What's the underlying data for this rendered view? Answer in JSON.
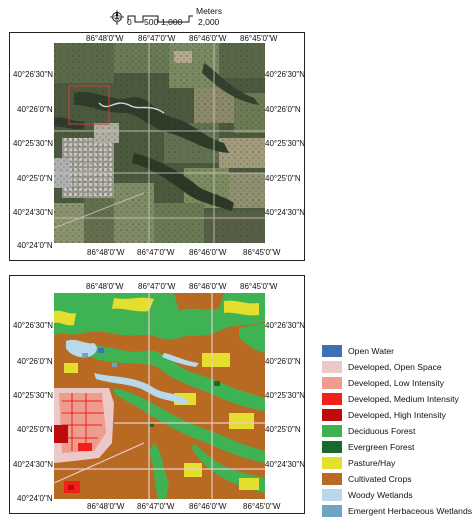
{
  "scale_bar": {
    "unit": "Meters",
    "ticks": [
      "0",
      "500",
      "1,000",
      "2,000"
    ]
  },
  "top_map": {
    "type": "aerial-imagery",
    "top_longitudes": [
      "86°48'0\"W",
      "86°47'0\"W",
      "86°46'0\"W",
      "86°45'0\"W"
    ],
    "bottom_longitudes": [
      "86°48'0\"W",
      "86°47'0\"W",
      "86°46'0\"W",
      "86°45'0\"W"
    ],
    "left_latitudes": [
      "40°26'30\"N",
      "40°26'0\"N",
      "40°25'30\"N",
      "40°25'0\"N",
      "40°24'30\"N",
      "40°24'0\"N"
    ],
    "right_latitudes": [
      "40°26'30\"N",
      "40°26'0\"N",
      "40°25'30\"N",
      "40°25'0\"N",
      "40°24'30\"N"
    ],
    "highlight_color": "#d83a3a"
  },
  "bottom_map": {
    "type": "land-cover",
    "top_longitudes": [
      "86°48'0\"W",
      "86°47'0\"W",
      "86°46'0\"W",
      "86°45'0\"W"
    ],
    "bottom_longitudes": [
      "86°48'0\"W",
      "86°47'0\"W",
      "86°46'0\"W",
      "86°45'0\"W"
    ],
    "left_latitudes": [
      "40°26'30\"N",
      "40°26'0\"N",
      "40°25'30\"N",
      "40°25'0\"N",
      "40°24'30\"N",
      "40°24'0\"N"
    ],
    "right_latitudes": [
      "40°26'30\"N",
      "40°26'0\"N",
      "40°25'30\"N",
      "40°25'0\"N",
      "40°24'30\"N"
    ]
  },
  "legend": [
    {
      "label": "Open Water",
      "color": "#3b72b4"
    },
    {
      "label": "Developed, Open Space",
      "color": "#ecc9c9"
    },
    {
      "label": "Developed, Low Intensity",
      "color": "#ee9c8e"
    },
    {
      "label": "Developed, Medium Intensity",
      "color": "#f2201a"
    },
    {
      "label": "Developed, High Intensity",
      "color": "#bd0a0a"
    },
    {
      "label": "Deciduous Forest",
      "color": "#3fb254"
    },
    {
      "label": "Evergreen Forest",
      "color": "#1a6a2e"
    },
    {
      "label": "Pasture/Hay",
      "color": "#e4df2d"
    },
    {
      "label": "Cultivated Crops",
      "color": "#b86a22"
    },
    {
      "label": "Woody Wetlands",
      "color": "#b8d9ec"
    },
    {
      "label": "Emergent Herbaceous Wetlands",
      "color": "#6ea5c1"
    }
  ]
}
